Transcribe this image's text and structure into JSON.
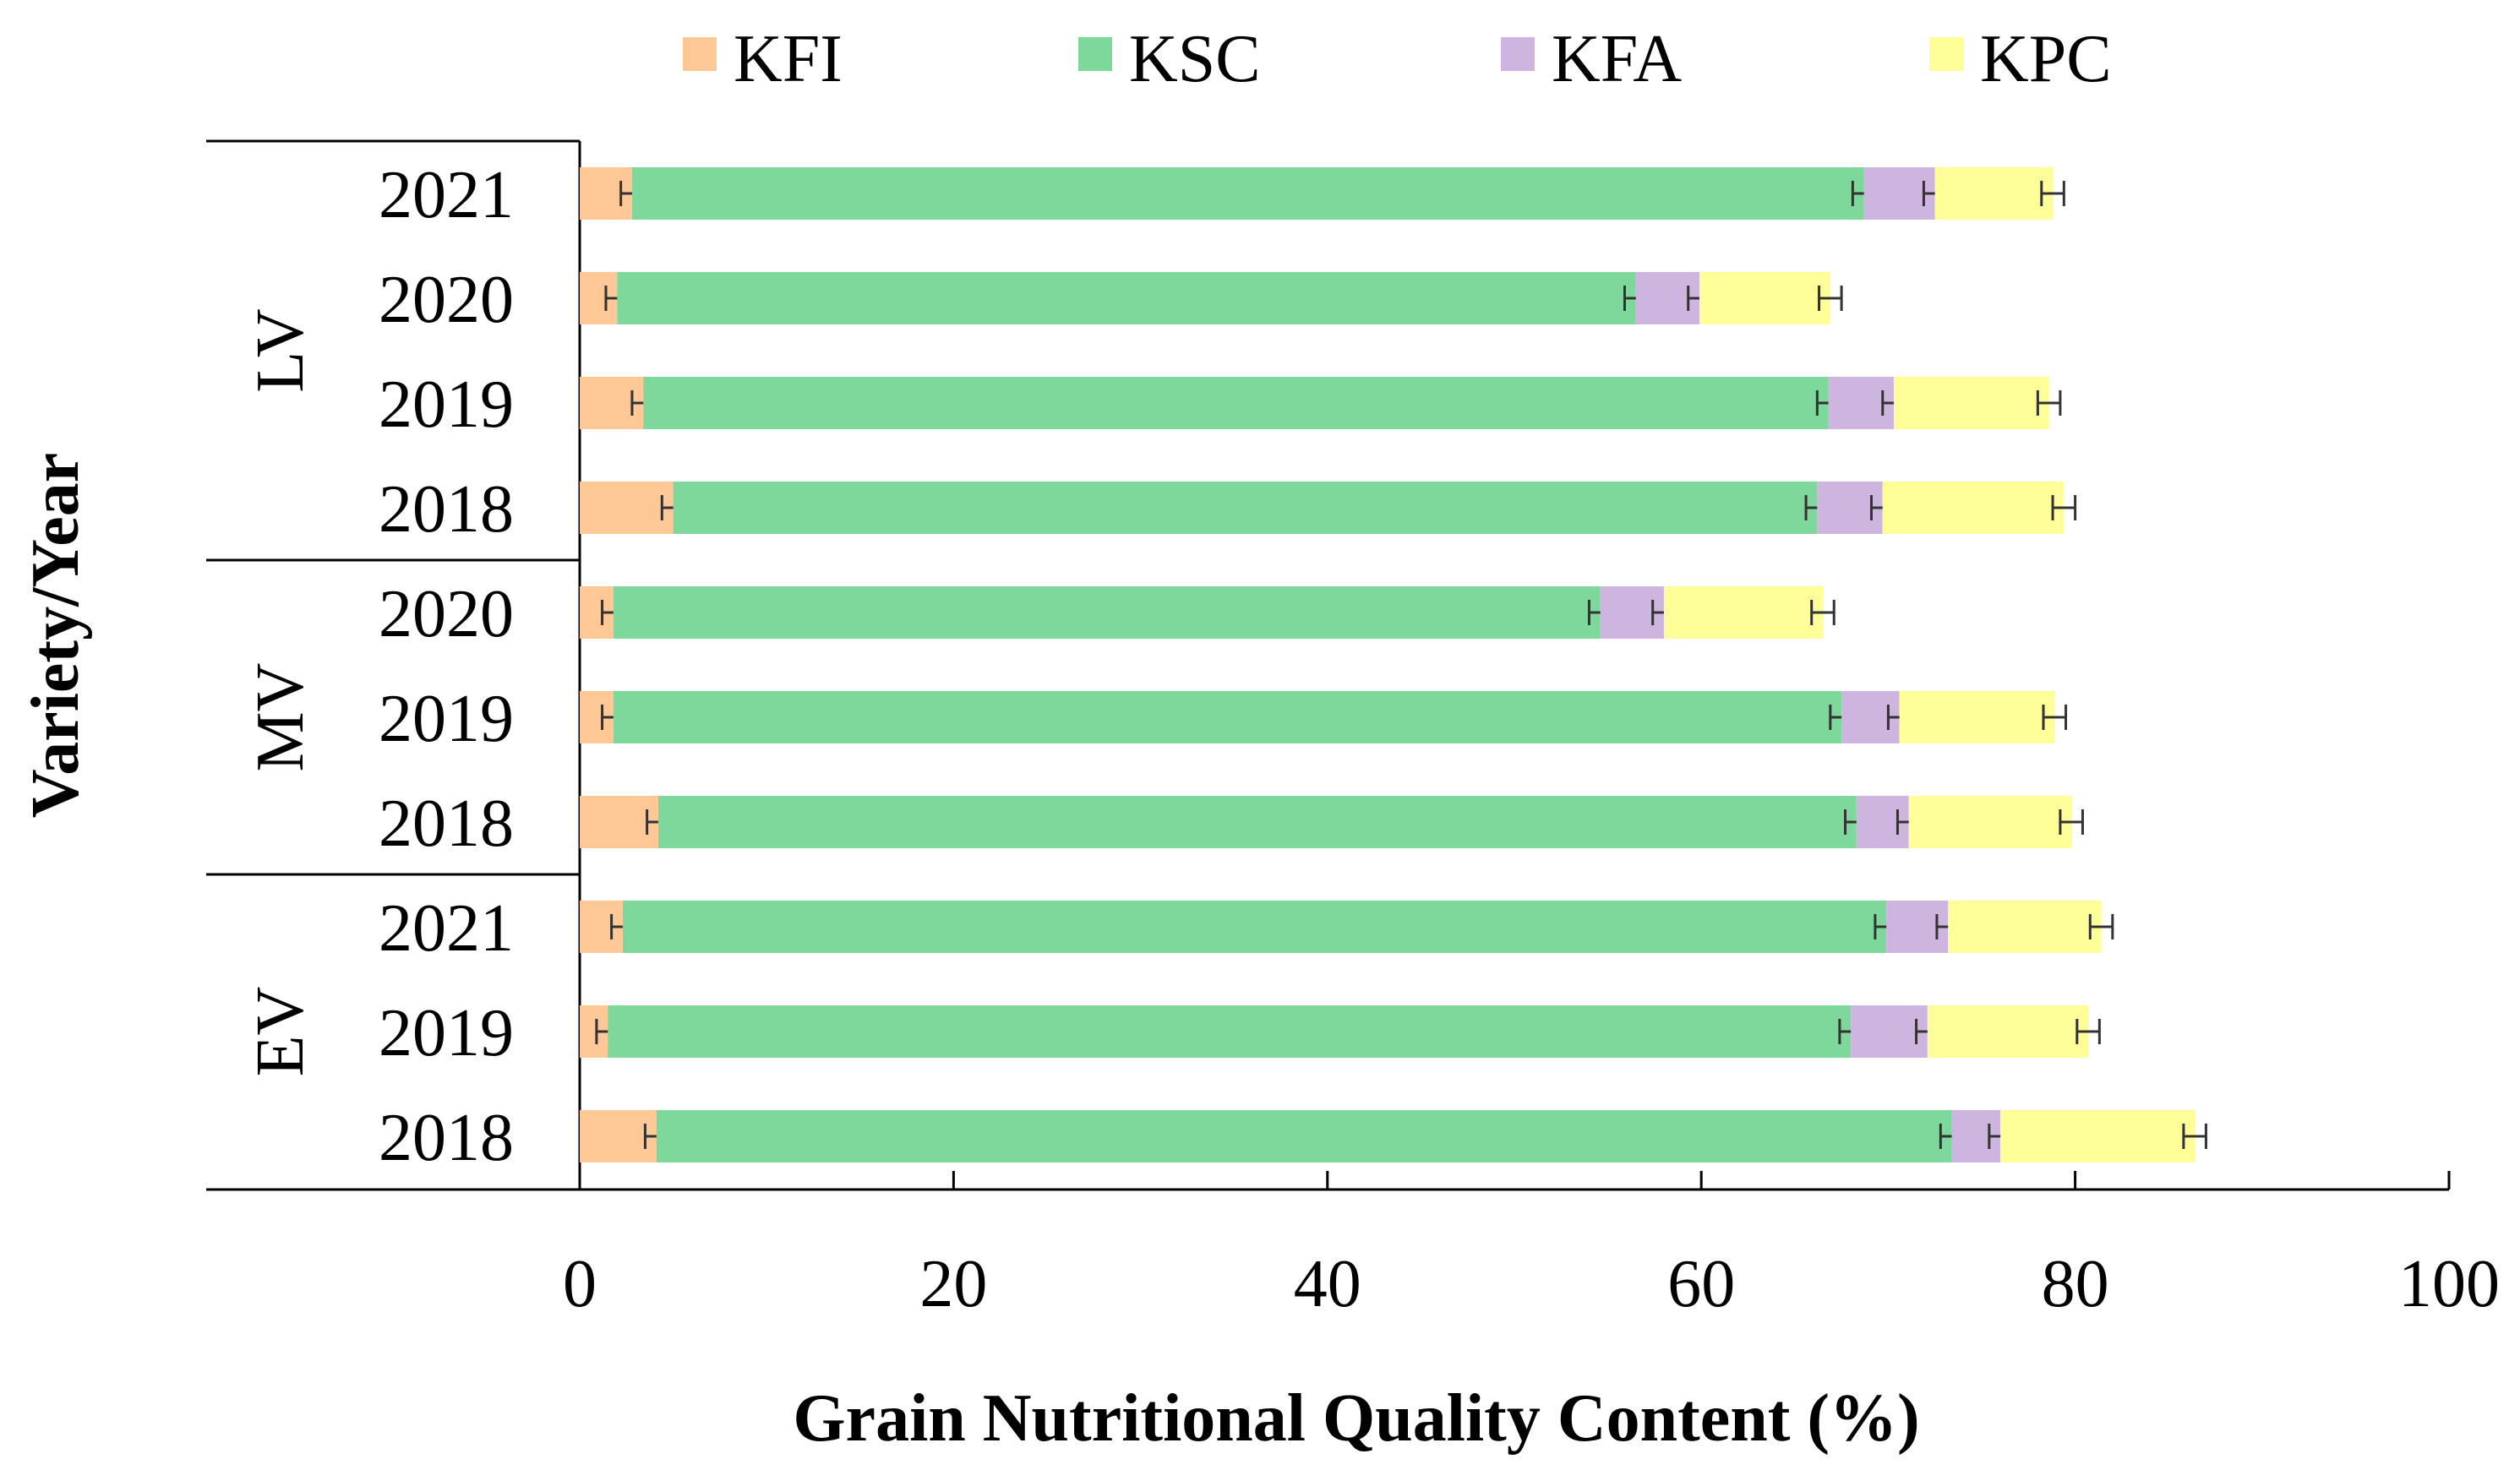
{
  "chart_data": {
    "type": "bar",
    "orientation": "horizontal",
    "stacked": true,
    "xlabel": "Grain Nutritional Quality Content (%)",
    "ylabel": "Variety/Year",
    "xlim": [
      0,
      100
    ],
    "xticks": [
      0,
      20,
      40,
      60,
      80,
      100
    ],
    "xtick_labels": [
      "0",
      "20",
      "40",
      "60",
      "80",
      "100"
    ],
    "grid": false,
    "legend_position": "top",
    "series": [
      {
        "name": "KFI",
        "color": "#FFC896"
      },
      {
        "name": "KSC",
        "color": "#7ED89B"
      },
      {
        "name": "KFA",
        "color": "#CDB5DF"
      },
      {
        "name": "KPC",
        "color": "#FFFF99"
      }
    ],
    "groups": [
      {
        "name": "LV",
        "rows": [
          {
            "year": "2021",
            "values": [
              2.8,
              65.9,
              3.8,
              6.3
            ]
          },
          {
            "year": "2020",
            "values": [
              2.0,
              54.5,
              3.4,
              7.0
            ]
          },
          {
            "year": "2019",
            "values": [
              3.4,
              63.4,
              3.5,
              8.3
            ]
          },
          {
            "year": "2018",
            "values": [
              5.0,
              61.2,
              3.5,
              9.7
            ]
          }
        ]
      },
      {
        "name": "MV",
        "rows": [
          {
            "year": "2020",
            "values": [
              1.8,
              52.8,
              3.4,
              8.5
            ]
          },
          {
            "year": "2019",
            "values": [
              1.8,
              65.7,
              3.1,
              8.3
            ]
          },
          {
            "year": "2018",
            "values": [
              4.2,
              64.1,
              2.8,
              8.7
            ]
          }
        ]
      },
      {
        "name": "EV",
        "rows": [
          {
            "year": "2021",
            "values": [
              2.3,
              67.6,
              3.3,
              8.2
            ]
          },
          {
            "year": "2019",
            "values": [
              1.5,
              66.5,
              4.1,
              8.6
            ]
          },
          {
            "year": "2018",
            "values": [
              4.1,
              69.3,
              2.6,
              10.4
            ]
          }
        ]
      }
    ],
    "error_bar_halfwidth": 0.6
  }
}
